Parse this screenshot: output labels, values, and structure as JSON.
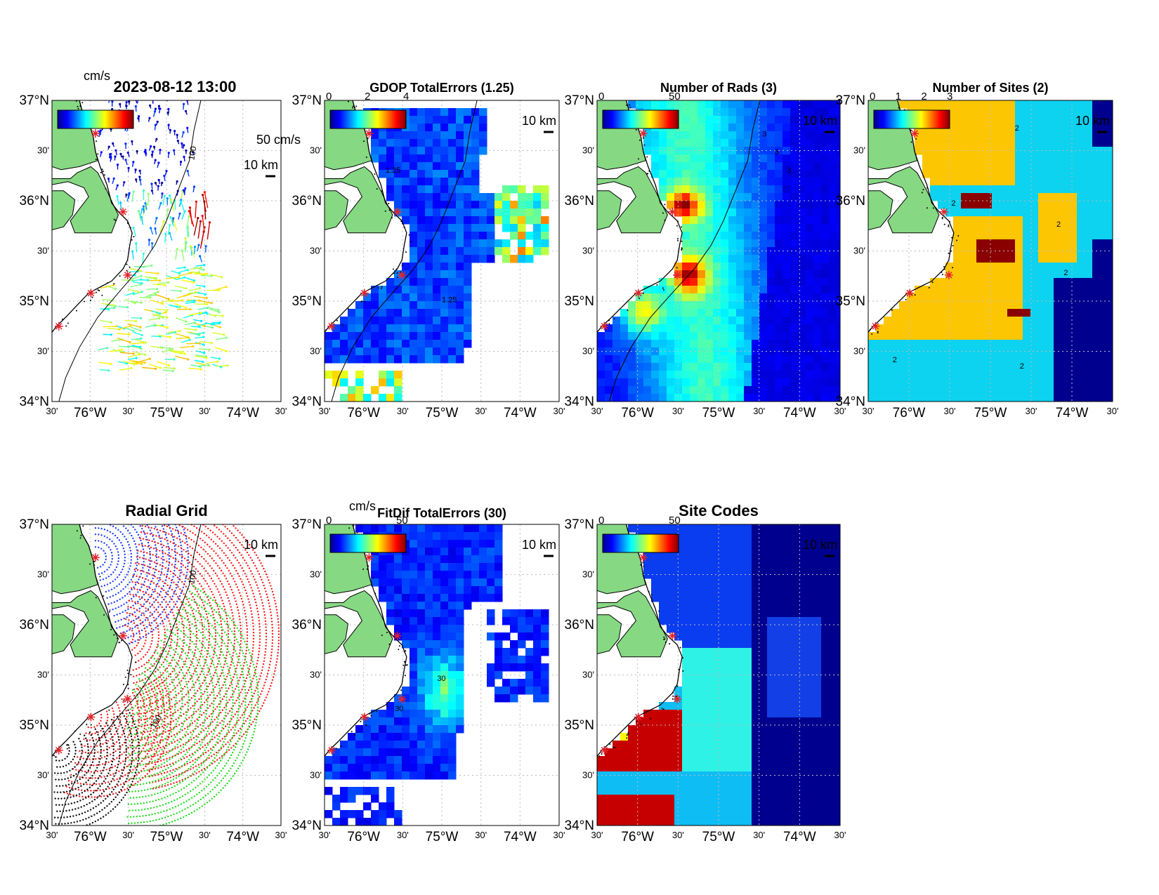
{
  "figure": {
    "timestamp": "2023-08-12 13:00",
    "unit_label": "cm/s",
    "vector_scale_label": "50 cm/s",
    "distance_scale_label": "10 km",
    "lat_labels": [
      "37°N",
      "30'",
      "36°N",
      "30'",
      "35°N",
      "30'",
      "34°N"
    ],
    "lon_labels": [
      "30'",
      "76°W",
      "30'",
      "75°W",
      "30'",
      "74°W",
      "30'"
    ],
    "land_color": "#86d883",
    "site_marker_color": "#e3242b"
  },
  "panels": [
    {
      "id": "total-vectors",
      "title": "",
      "colorbar_ticks": [],
      "colorbar_ticks_text": "",
      "unit": "cm/s"
    },
    {
      "id": "gdop-total-errors",
      "title": "GDOP TotalErrors (1.25)",
      "colorbar_ticks": [
        "0",
        "2",
        "4"
      ],
      "contour_labels": [
        "1.25",
        "1.25"
      ]
    },
    {
      "id": "number-of-rads",
      "title": "Number of Rads (3)",
      "colorbar_ticks": [
        "0",
        "50"
      ],
      "contour_labels": [
        "3",
        "3",
        "3"
      ]
    },
    {
      "id": "number-of-sites",
      "title": "Number of Sites (2)",
      "colorbar_ticks": [
        "0",
        "1",
        "2",
        "3"
      ],
      "contour_labels": [
        "2",
        "2",
        "2",
        "2",
        "2",
        "2"
      ]
    },
    {
      "id": "radial-grid",
      "title": "Radial Grid",
      "colorbar_ticks": []
    },
    {
      "id": "fitdif-total-errors",
      "title": "FitDif TotalErrors (30)",
      "unit": "cm/s",
      "colorbar_ticks": [
        "0",
        "50"
      ],
      "contour_labels": [
        "30",
        "30"
      ]
    },
    {
      "id": "site-codes",
      "title": "Site Codes",
      "colorbar_ticks": [
        "0",
        "50"
      ]
    }
  ],
  "isobath_label": "100"
}
